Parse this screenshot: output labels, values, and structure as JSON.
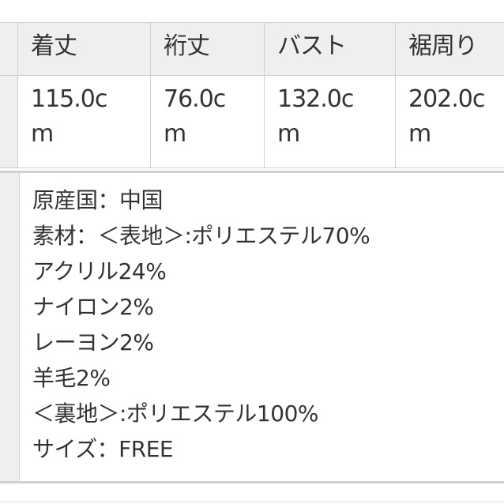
{
  "table": {
    "headers": [
      "着丈",
      "裄丈",
      "バスト",
      "裾周り"
    ],
    "values": [
      "115.0c\nm",
      "76.0c\nm",
      "132.0c\nm",
      "202.0c\nm"
    ]
  },
  "notes": [
    "原産国：中国",
    "素材：＜表地＞:ポリエステル70%",
    "アクリル24%",
    "ナイロン2%",
    "レーヨン2%",
    "羊毛2%",
    "＜裏地＞:ポリエステル100%",
    "サイズ：FREE"
  ]
}
